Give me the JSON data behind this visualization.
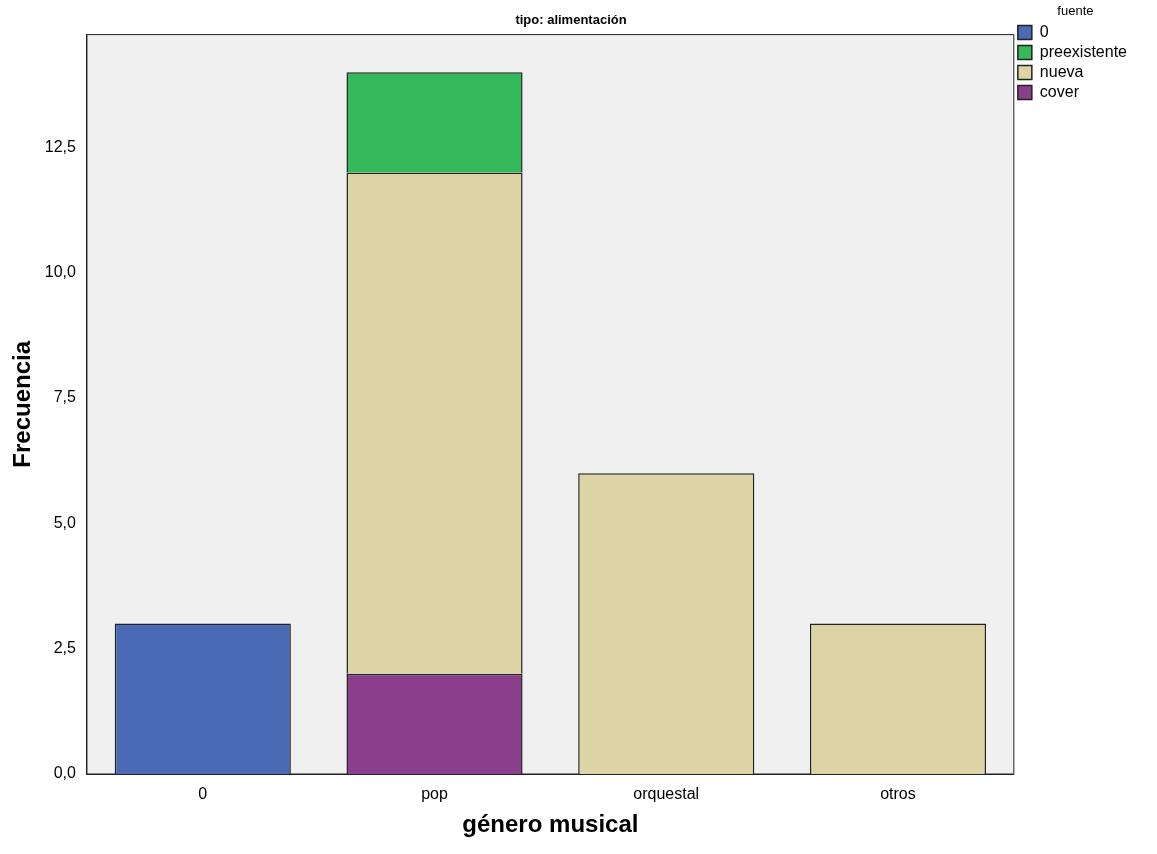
{
  "chart_data": {
    "type": "bar",
    "title": "tipo: alimentación",
    "xlabel": "género musical",
    "ylabel": "Frecuencia",
    "legend_title": "fuente",
    "categories": [
      "0",
      "pop",
      "orquestal",
      "otros"
    ],
    "series": [
      {
        "name": "cover",
        "color": "#8b3e8c",
        "values": [
          null,
          2,
          null,
          null
        ]
      },
      {
        "name": "nueva",
        "color": "#dcd4a4",
        "values": [
          null,
          10,
          6,
          3
        ]
      },
      {
        "name": "preexistente",
        "color": "#34b95a",
        "values": [
          null,
          2,
          null,
          null
        ]
      },
      {
        "name": "0",
        "color": "#4a6ab5",
        "values": [
          3,
          null,
          null,
          null
        ]
      }
    ],
    "stacked": true,
    "ylim": [
      0,
      14.75
    ],
    "yticks": [
      {
        "value": 0,
        "label": "0,0"
      },
      {
        "value": 2.5,
        "label": "2,5"
      },
      {
        "value": 5,
        "label": "5,0"
      },
      {
        "value": 7.5,
        "label": "7,5"
      },
      {
        "value": 10,
        "label": "10,0"
      },
      {
        "value": 12.5,
        "label": "12,5"
      }
    ],
    "grid": false,
    "legend": "top right"
  }
}
